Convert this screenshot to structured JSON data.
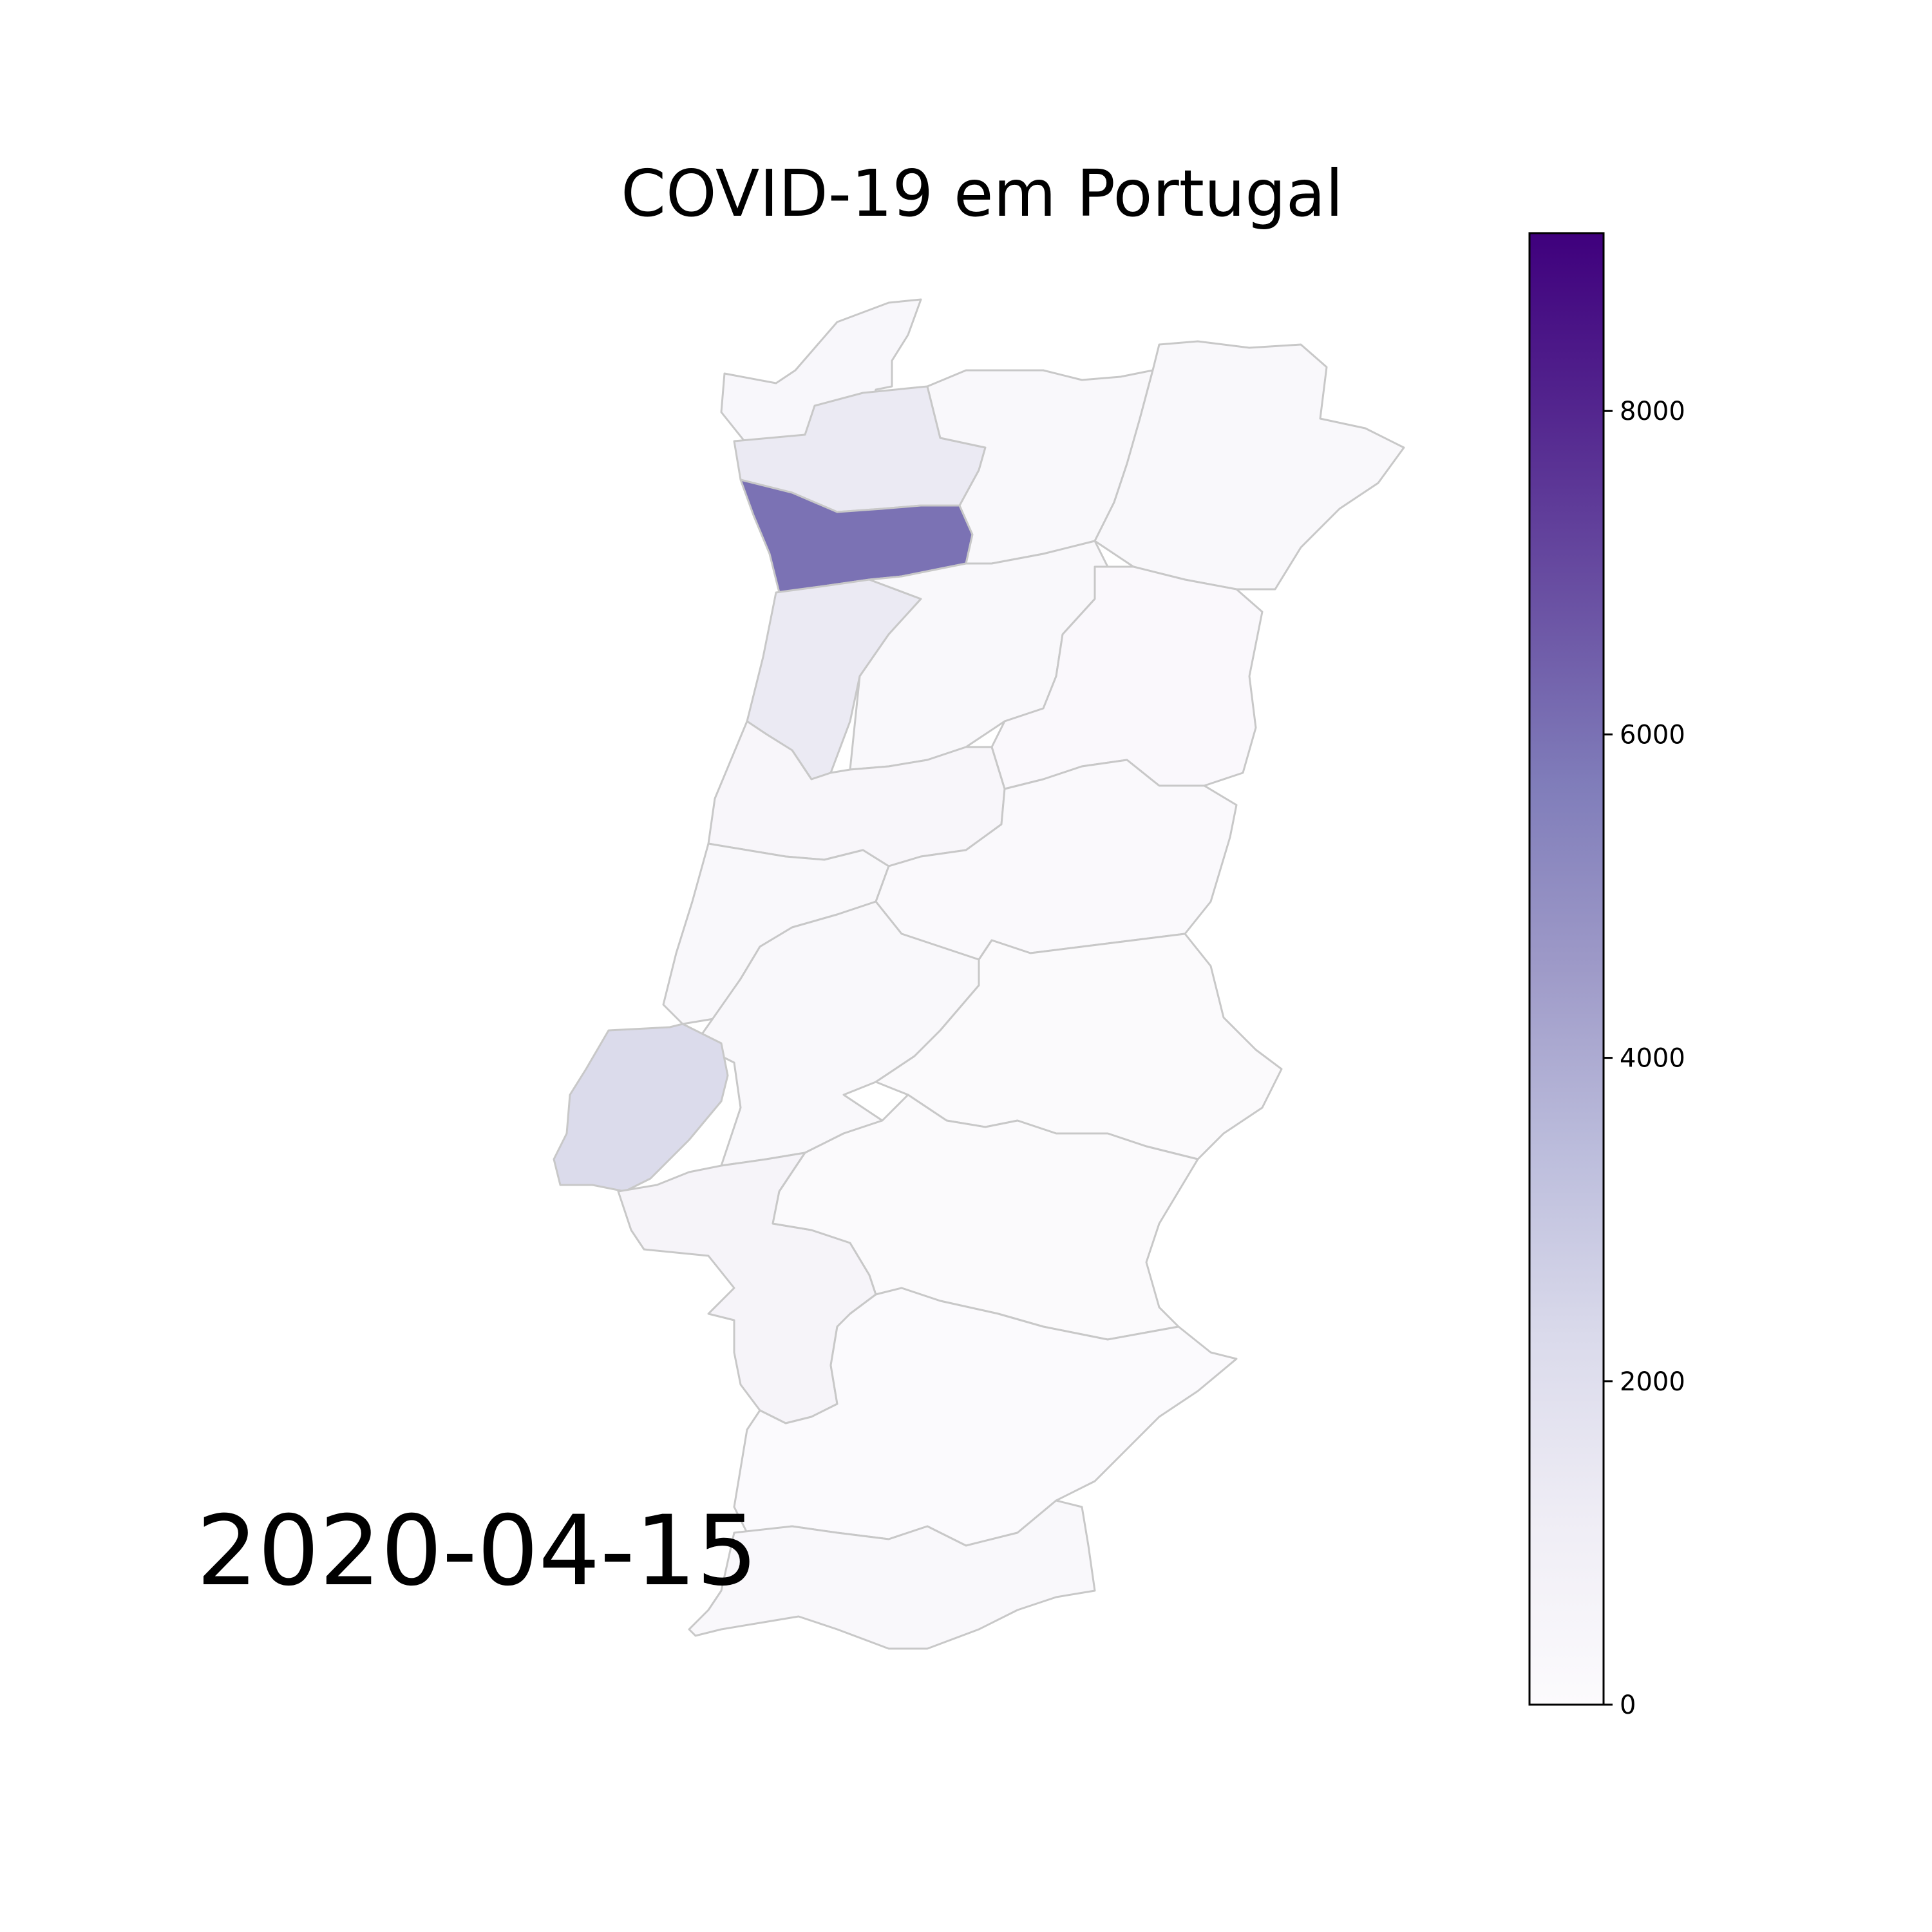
{
  "title": "COVID-19 em Portugal",
  "date": "2020-04-15",
  "colorbar": {
    "colormap": "Purples",
    "min": 0,
    "max": 9100,
    "ticks": [
      {
        "value": 0,
        "label": "0"
      },
      {
        "value": 2000,
        "label": "2000"
      },
      {
        "value": 4000,
        "label": "4000"
      },
      {
        "value": 6000,
        "label": "6000"
      },
      {
        "value": 8000,
        "label": "8000"
      }
    ],
    "color_stops": [
      "#fcfbfd",
      "#efedf5",
      "#dadaeb",
      "#bcbddc",
      "#9e9ac8",
      "#807dba",
      "#6a51a3",
      "#54278f",
      "#3f007d"
    ]
  },
  "map_data": {
    "regions": [
      {
        "name": "viana-do-castelo",
        "value": 320
      },
      {
        "name": "braga",
        "value": 1330
      },
      {
        "name": "porto",
        "value": 5960
      },
      {
        "name": "aveiro",
        "value": 1330
      },
      {
        "name": "vila-real",
        "value": 230
      },
      {
        "name": "braganca",
        "value": 230
      },
      {
        "name": "viseu",
        "value": 280
      },
      {
        "name": "guarda",
        "value": 210
      },
      {
        "name": "coimbra",
        "value": 380
      },
      {
        "name": "leiria",
        "value": 230
      },
      {
        "name": "castelo-branco",
        "value": 170
      },
      {
        "name": "santarem",
        "value": 240
      },
      {
        "name": "lisboa",
        "value": 2240
      },
      {
        "name": "portalegre",
        "value": 90
      },
      {
        "name": "setubal",
        "value": 530
      },
      {
        "name": "evora",
        "value": 100
      },
      {
        "name": "beja",
        "value": 60
      },
      {
        "name": "faro",
        "value": 250
      }
    ]
  }
}
